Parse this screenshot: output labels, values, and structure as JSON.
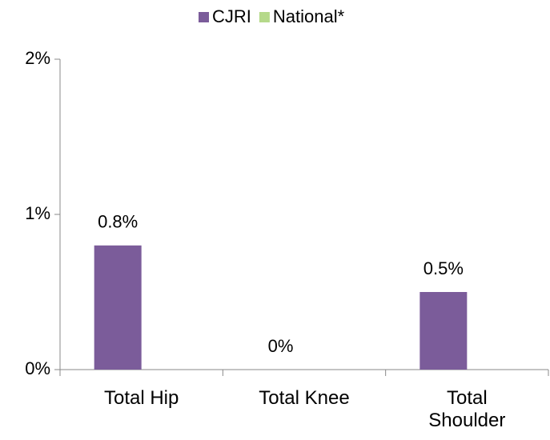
{
  "chart_data": {
    "type": "bar",
    "categories": [
      "Total Hip",
      "Total Knee",
      "Total Shoulder"
    ],
    "series": [
      {
        "name": "CJRI",
        "color": "#7b5c9a",
        "values": [
          0.8,
          0,
          0.5
        ],
        "value_labels": [
          "0.8%",
          "0%",
          "0.5%"
        ]
      },
      {
        "name": "National*",
        "color": "#b5d98a",
        "values": [
          null,
          null,
          null
        ]
      }
    ],
    "ylim": [
      0,
      2
    ],
    "yticks": [
      {
        "value": 0,
        "label": "0%"
      },
      {
        "value": 1,
        "label": "1%"
      },
      {
        "value": 2,
        "label": "2%"
      }
    ],
    "legend": "top"
  }
}
